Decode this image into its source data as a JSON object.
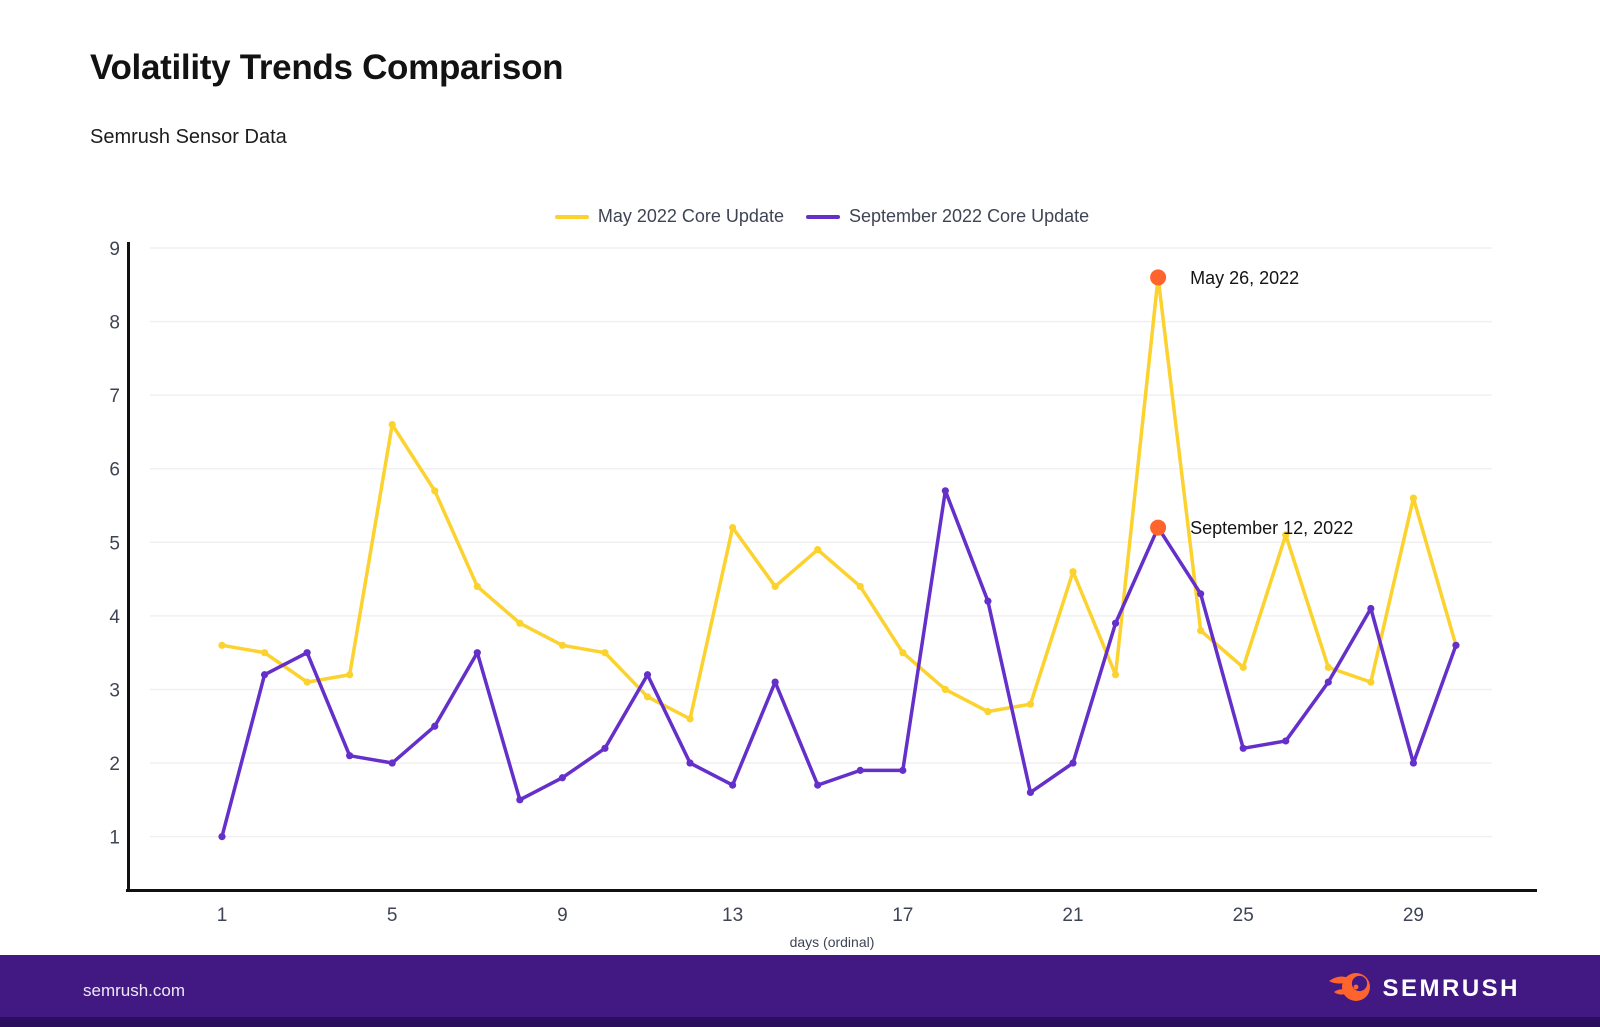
{
  "page": {
    "title": "Volatility Trends Comparison",
    "subtitle": "Semrush Sensor Data"
  },
  "chart_data": {
    "type": "line",
    "title": "Volatility Trends Comparison",
    "subtitle": "Semrush Sensor Data",
    "xlabel": "days (ordinal)",
    "ylabel": "",
    "x": [
      1,
      2,
      3,
      4,
      5,
      6,
      7,
      8,
      9,
      10,
      11,
      12,
      13,
      14,
      15,
      16,
      17,
      18,
      19,
      20,
      21,
      22,
      23,
      24,
      25,
      26,
      27,
      28,
      29,
      30
    ],
    "x_ticks": [
      1,
      5,
      9,
      13,
      17,
      21,
      25,
      29
    ],
    "y_ticks": [
      1,
      2,
      3,
      4,
      5,
      6,
      7,
      8,
      9
    ],
    "ylim": [
      0,
      9
    ],
    "grid": "horizontal",
    "legend_position": "top",
    "series": [
      {
        "name": "May 2022 Core Update",
        "color": "#FBD22E",
        "values": [
          3.6,
          3.5,
          3.1,
          3.2,
          6.6,
          5.7,
          4.4,
          3.9,
          3.6,
          3.5,
          2.9,
          2.6,
          5.2,
          4.4,
          4.9,
          4.4,
          3.5,
          3.0,
          2.7,
          2.8,
          4.6,
          3.2,
          8.6,
          3.8,
          3.3,
          5.1,
          3.3,
          3.1,
          5.6,
          3.6
        ]
      },
      {
        "name": "September 2022 Core Update",
        "color": "#6430C9",
        "values": [
          1.0,
          3.2,
          3.5,
          2.1,
          2.0,
          2.5,
          3.5,
          1.5,
          1.8,
          2.2,
          3.2,
          2.0,
          1.7,
          3.1,
          1.7,
          1.9,
          1.9,
          5.7,
          4.2,
          1.6,
          2.0,
          3.9,
          5.2,
          4.3,
          2.2,
          2.3,
          3.1,
          4.1,
          2.0,
          3.6
        ]
      }
    ],
    "annotations": [
      {
        "label": "May 26, 2022",
        "series": "May 2022 Core Update",
        "day": 23,
        "value": 8.6,
        "marker_color": "#FF642D"
      },
      {
        "label": "September 12, 2022",
        "series": "September 2022 Core Update",
        "day": 23,
        "value": 5.2,
        "marker_color": "#FF642D"
      }
    ]
  },
  "footer": {
    "site": "semrush.com",
    "brand": "SEMRUSH"
  },
  "colors": {
    "accent_yellow": "#FBD22E",
    "accent_purple": "#6430C9",
    "annotation_orange": "#FF642D",
    "footer_bg": "#421983",
    "axis_text": "#3f4455",
    "grid_line": "#f0f0f2",
    "axis_line": "#111111"
  }
}
